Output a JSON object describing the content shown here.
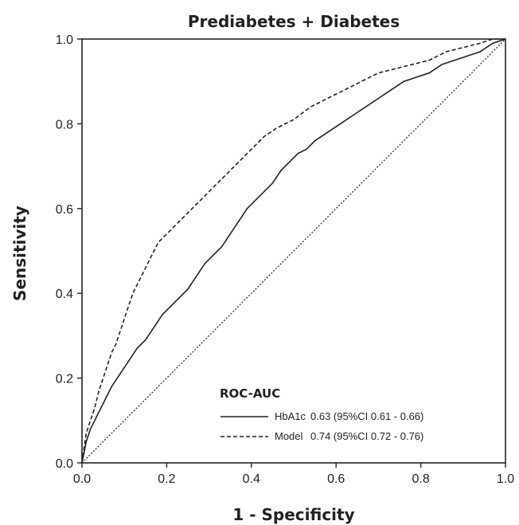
{
  "chart_data": {
    "type": "line",
    "title": "Prediabetes + Diabetes",
    "xlabel": "1 - Specificity",
    "ylabel": "Sensitivity",
    "xlim": [
      0,
      1
    ],
    "ylim": [
      0,
      1
    ],
    "x_ticks": [
      "0.0",
      "0.2",
      "0.4",
      "0.6",
      "0.8",
      "1.0"
    ],
    "y_ticks": [
      "0.0",
      "0.2",
      "0.4",
      "0.6",
      "0.8",
      "1.0"
    ],
    "grid": false,
    "legend": {
      "title": "ROC-AUC",
      "position": "bottom-right",
      "entries": [
        {
          "series": "HbA1c",
          "label": "HbA1c",
          "stats": "0.63 (95%CI 0.61 - 0.66)",
          "line_style": "solid"
        },
        {
          "series": "Model",
          "label": "Model",
          "stats": "0.74 (95%CI 0.72 - 0.76)",
          "line_style": "dashed"
        }
      ]
    },
    "series": [
      {
        "name": "HbA1c",
        "line_style": "solid",
        "color": "#222222",
        "x": [
          0.0,
          0.01,
          0.02,
          0.03,
          0.05,
          0.07,
          0.09,
          0.11,
          0.13,
          0.15,
          0.17,
          0.19,
          0.21,
          0.23,
          0.25,
          0.27,
          0.29,
          0.31,
          0.33,
          0.35,
          0.37,
          0.39,
          0.41,
          0.43,
          0.45,
          0.47,
          0.49,
          0.51,
          0.53,
          0.55,
          0.58,
          0.61,
          0.64,
          0.67,
          0.7,
          0.73,
          0.76,
          0.79,
          0.82,
          0.85,
          0.88,
          0.91,
          0.94,
          0.97,
          1.0
        ],
        "y": [
          0.0,
          0.05,
          0.08,
          0.1,
          0.14,
          0.18,
          0.21,
          0.24,
          0.27,
          0.29,
          0.32,
          0.35,
          0.37,
          0.39,
          0.41,
          0.44,
          0.47,
          0.49,
          0.51,
          0.54,
          0.57,
          0.6,
          0.62,
          0.64,
          0.66,
          0.69,
          0.71,
          0.73,
          0.74,
          0.76,
          0.78,
          0.8,
          0.82,
          0.84,
          0.86,
          0.88,
          0.9,
          0.91,
          0.92,
          0.94,
          0.95,
          0.96,
          0.97,
          0.99,
          1.0
        ]
      },
      {
        "name": "Model",
        "line_style": "dashed",
        "color": "#222222",
        "x": [
          0.0,
          0.01,
          0.02,
          0.03,
          0.04,
          0.05,
          0.06,
          0.07,
          0.08,
          0.09,
          0.1,
          0.11,
          0.12,
          0.13,
          0.14,
          0.15,
          0.16,
          0.17,
          0.18,
          0.2,
          0.22,
          0.24,
          0.26,
          0.28,
          0.3,
          0.32,
          0.34,
          0.36,
          0.38,
          0.4,
          0.43,
          0.46,
          0.5,
          0.54,
          0.58,
          0.62,
          0.66,
          0.7,
          0.74,
          0.78,
          0.82,
          0.86,
          0.9,
          0.94,
          0.97,
          1.0
        ],
        "y": [
          0.0,
          0.07,
          0.1,
          0.13,
          0.17,
          0.2,
          0.23,
          0.26,
          0.28,
          0.31,
          0.34,
          0.37,
          0.4,
          0.42,
          0.44,
          0.46,
          0.48,
          0.5,
          0.52,
          0.54,
          0.56,
          0.58,
          0.6,
          0.62,
          0.64,
          0.66,
          0.68,
          0.7,
          0.72,
          0.74,
          0.77,
          0.79,
          0.81,
          0.84,
          0.86,
          0.88,
          0.9,
          0.92,
          0.93,
          0.94,
          0.95,
          0.97,
          0.98,
          0.99,
          1.0,
          1.0
        ]
      },
      {
        "name": "",
        "line_style": "dotted",
        "color": "#222222",
        "x": [
          0.0,
          1.0
        ],
        "y": [
          0.0,
          1.0
        ]
      }
    ]
  }
}
